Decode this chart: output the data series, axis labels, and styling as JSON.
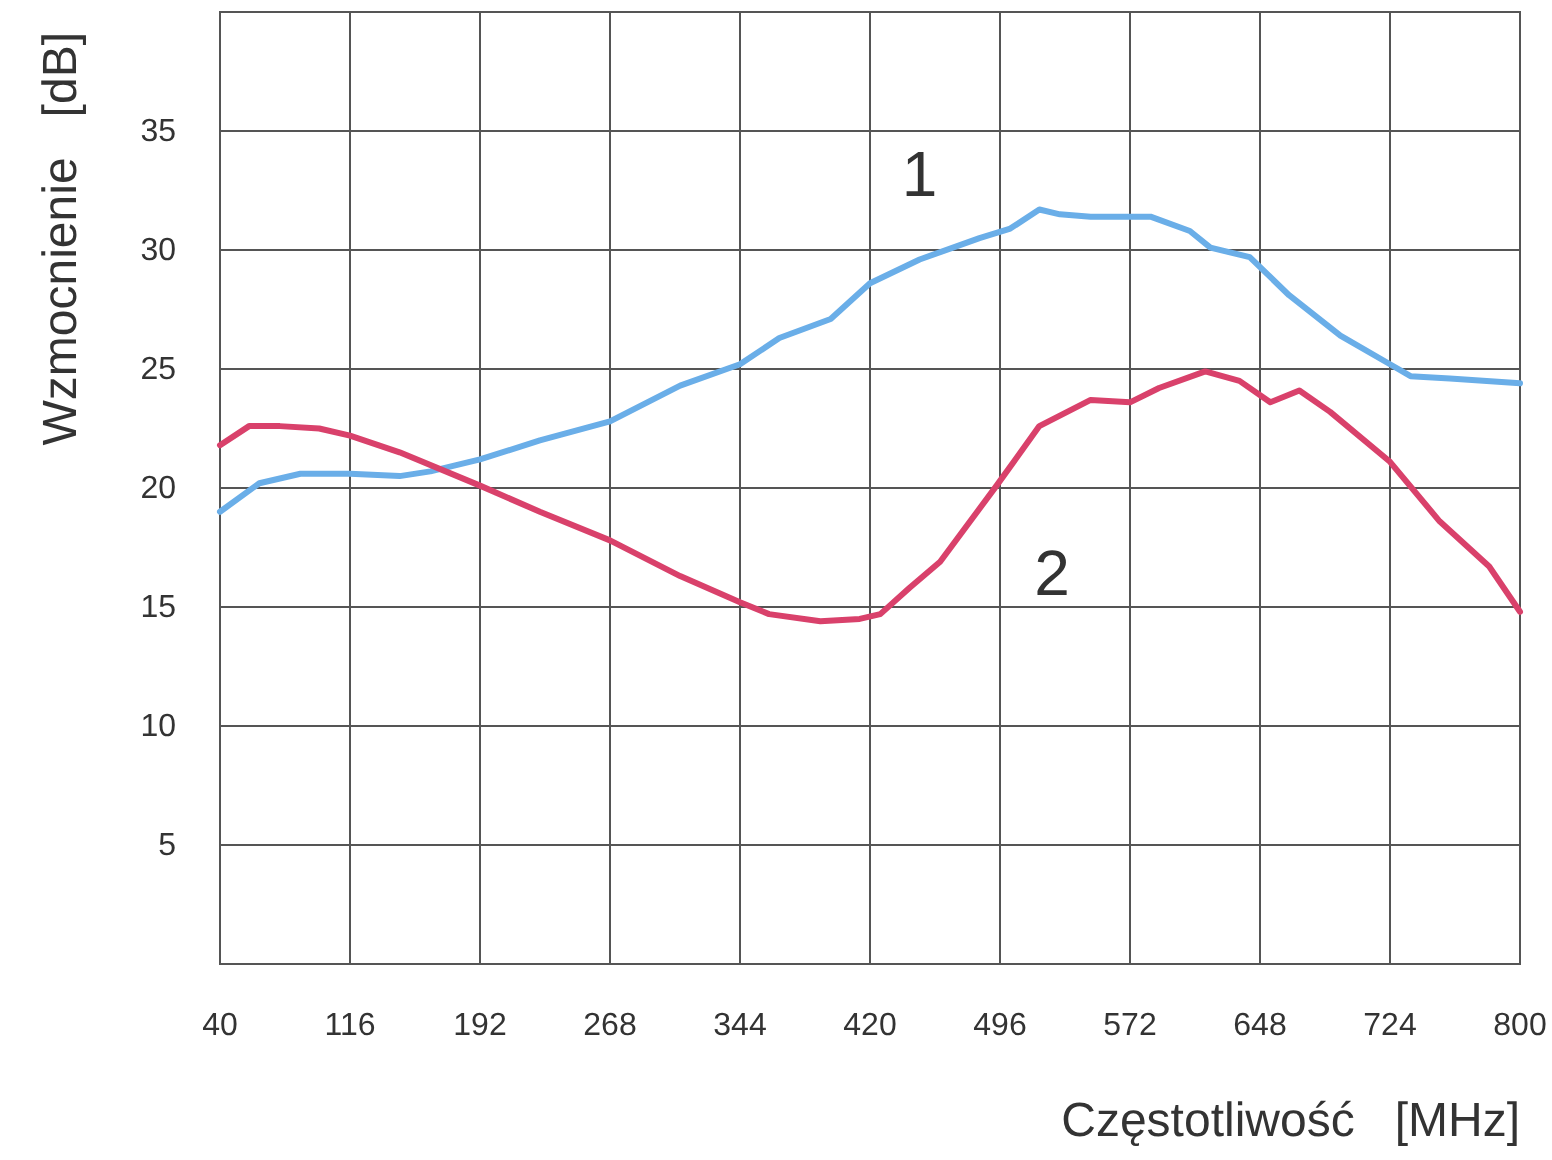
{
  "chart_data": {
    "type": "line",
    "xlabel": "Częstotliwość   [MHz]",
    "ylabel": "Wzmocnienie   [dB]",
    "xlim": [
      40,
      800
    ],
    "xticks": [
      40,
      116,
      192,
      268,
      344,
      420,
      496,
      572,
      648,
      724,
      800
    ],
    "ylim": [
      0,
      40
    ],
    "yticks": [
      5,
      10,
      15,
      20,
      25,
      30,
      35
    ],
    "grid": true,
    "line_style": "solid",
    "series": [
      {
        "name": "1",
        "color": "#6aaee8",
        "x": [
          40,
          63,
          87,
          116,
          145,
          163,
          192,
          227,
          268,
          309,
          344,
          367,
          397,
          420,
          449,
          484,
          502,
          519,
          531,
          549,
          584,
          607,
          619,
          642,
          665,
          695,
          724,
          736,
          759,
          800
        ],
        "values": [
          19.0,
          20.2,
          20.6,
          20.6,
          20.5,
          20.7,
          21.2,
          22.0,
          22.8,
          24.3,
          25.2,
          26.3,
          27.1,
          28.6,
          29.6,
          30.5,
          30.9,
          31.7,
          31.5,
          31.4,
          31.4,
          30.8,
          30.1,
          29.7,
          28.1,
          26.4,
          25.2,
          24.7,
          24.6,
          24.4
        ]
      },
      {
        "name": "2",
        "color": "#d9416b",
        "x": [
          40,
          57,
          75,
          98,
          116,
          145,
          192,
          227,
          268,
          309,
          344,
          361,
          391,
          414,
          426,
          443,
          461,
          494,
          519,
          549,
          572,
          589,
          616,
          636,
          654,
          671,
          689,
          724,
          753,
          782,
          800
        ],
        "values": [
          21.8,
          22.6,
          22.6,
          22.5,
          22.2,
          21.5,
          20.1,
          19.0,
          17.8,
          16.3,
          15.2,
          14.7,
          14.4,
          14.5,
          14.7,
          15.8,
          16.9,
          20.1,
          22.6,
          23.7,
          23.6,
          24.2,
          24.9,
          24.5,
          23.6,
          24.1,
          23.2,
          21.1,
          18.6,
          16.7,
          14.8
        ]
      }
    ]
  }
}
